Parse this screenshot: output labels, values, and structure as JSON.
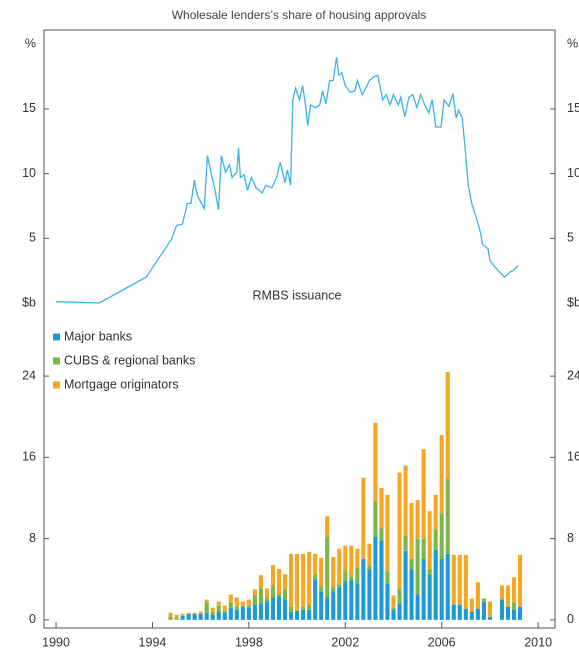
{
  "chart_data": [
    {
      "type": "line",
      "title": "Wholesale lenders’s share of housing approvals",
      "y_unit": "%",
      "color": "#3cb4e5",
      "xlim": [
        1989.5,
        2010.7
      ],
      "ylim": [
        0,
        21.1
      ],
      "yticks": [
        5,
        10,
        15
      ],
      "x": [
        1990,
        1991.8,
        1993.74,
        1994.28,
        1994.78,
        1995,
        1995.24,
        1995.45,
        1995.6,
        1995.74,
        1995.86,
        1996.15,
        1996.28,
        1996.45,
        1996.6,
        1996.74,
        1996.86,
        1997.03,
        1997.2,
        1997.3,
        1997.5,
        1997.57,
        1997.65,
        1997.8,
        1997.94,
        1998.1,
        1998.3,
        1998.55,
        1998.7,
        1998.95,
        1999.15,
        1999.3,
        1999.5,
        1999.6,
        1999.73,
        1999.82,
        1999.94,
        2000.1,
        2000.23,
        2000.35,
        2000.44,
        2000.56,
        2000.77,
        2000.94,
        2001.06,
        2001.2,
        2001.35,
        2001.5,
        2001.64,
        2001.73,
        2001.85,
        2002,
        2002.2,
        2002.4,
        2002.5,
        2002.7,
        2002.85,
        2003,
        2003.2,
        2003.35,
        2003.55,
        2003.7,
        2003.85,
        2004,
        2004.2,
        2004.3,
        2004.47,
        2004.64,
        2004.8,
        2004.97,
        2005.13,
        2005.3,
        2005.47,
        2005.6,
        2005.76,
        2005.97,
        2006.1,
        2006.3,
        2006.47,
        2006.6,
        2006.7,
        2006.85,
        2006.97,
        2007.1,
        2007.26,
        2007.43,
        2007.6,
        2007.7,
        2007.92,
        2008,
        2008.2,
        2008.4,
        2008.6,
        2008.84,
        2008.96,
        2009.17
      ],
      "values": [
        0.1,
        0,
        2,
        3.5,
        4.9,
        6,
        6.1,
        7.7,
        7.7,
        9.5,
        8.3,
        7.3,
        11.4,
        9.9,
        8.7,
        7.2,
        11.4,
        10.1,
        10.7,
        9.7,
        10.1,
        12,
        9.7,
        9.9,
        8.7,
        9.7,
        8.9,
        8.5,
        9.1,
        8.9,
        9.7,
        10.9,
        9.3,
        10.3,
        9.1,
        15.7,
        16.6,
        15.7,
        16.8,
        15.3,
        13.7,
        15.3,
        15.1,
        15.3,
        16.4,
        15.4,
        17.2,
        17.2,
        19,
        17.6,
        17.8,
        16.8,
        16.3,
        16.4,
        17.2,
        16.1,
        16.6,
        17.2,
        17.5,
        17.6,
        15.7,
        16.1,
        15.3,
        16.1,
        15.3,
        15.9,
        14.4,
        15.9,
        16.1,
        15.1,
        16.1,
        15.3,
        14.7,
        15.7,
        13.6,
        13.6,
        15.7,
        15.2,
        16.2,
        14.3,
        14.9,
        14.3,
        12,
        9.1,
        7.6,
        6.6,
        5.5,
        4.5,
        4.2,
        3.3,
        2.8,
        2.4,
        2,
        2.4,
        2.5,
        2.9
      ]
    },
    {
      "type": "bar",
      "stacked": true,
      "title": "RMBS issuance",
      "y_unit": "$b",
      "xlim": [
        1989.5,
        2010.7
      ],
      "xticks": [
        1990,
        1994,
        1998,
        2002,
        2006,
        2010
      ],
      "ylim": [
        -0.8,
        31.2
      ],
      "yticks": [
        0,
        8,
        16,
        24
      ],
      "x": [
        1994.75,
        1995,
        1995.25,
        1995.5,
        1995.75,
        1996,
        1996.25,
        1996.5,
        1996.75,
        1997,
        1997.25,
        1997.5,
        1997.75,
        1998,
        1998.25,
        1998.5,
        1998.75,
        1999,
        1999.25,
        1999.5,
        1999.75,
        2000,
        2000.25,
        2000.5,
        2000.75,
        2001,
        2001.25,
        2001.5,
        2001.75,
        2002,
        2002.25,
        2002.5,
        2002.75,
        2003,
        2003.25,
        2003.5,
        2003.75,
        2004,
        2004.25,
        2004.5,
        2004.75,
        2005,
        2005.25,
        2005.5,
        2005.75,
        2006,
        2006.25,
        2006.5,
        2006.75,
        2007,
        2007.25,
        2007.5,
        2007.75,
        2008,
        2008.25,
        2008.5,
        2008.75,
        2009,
        2009.25
      ],
      "series": [
        {
          "name": "Major banks",
          "color": "#1b9ad6",
          "values": [
            0,
            0,
            0.4,
            0.6,
            0.6,
            0.6,
            0.7,
            0.5,
            0.8,
            0.7,
            1.2,
            1,
            1.3,
            1.2,
            1.5,
            1.6,
            1.8,
            2.2,
            2.3,
            2,
            0.8,
            0.9,
            1,
            1,
            4,
            2.8,
            2.2,
            2.8,
            3.2,
            3.8,
            3.9,
            3.6,
            6,
            5,
            8.2,
            7.8,
            3.6,
            1,
            1.6,
            6.8,
            5,
            2.5,
            6,
            4.5,
            6.9,
            6,
            6.5,
            1.5,
            1.5,
            1.1,
            0.8,
            1.1,
            1.8,
            0.3,
            0,
            2,
            1.3,
            1,
            1.3
          ]
        },
        {
          "name": "CUBS & regional banks",
          "color": "#7ab648",
          "values": [
            0.3,
            0.2,
            0,
            0,
            0,
            0,
            1,
            0.3,
            0.6,
            0.2,
            0.5,
            0.3,
            0,
            0.2,
            0.9,
            1.5,
            0.4,
            1.2,
            0.2,
            1,
            0.5,
            0,
            0.3,
            0.5,
            0.5,
            0.5,
            6,
            0.4,
            0.3,
            1,
            0.4,
            1.5,
            0,
            0.3,
            3.5,
            1.2,
            1.2,
            0.2,
            1.5,
            1.5,
            1,
            5.5,
            2,
            0.5,
            2,
            4.5,
            7.4,
            0,
            0,
            0,
            0,
            0,
            0.3,
            0,
            0,
            0,
            0,
            0.7,
            0
          ]
        },
        {
          "name": "Mortgage originators",
          "color": "#f5a623",
          "values": [
            0.4,
            0.3,
            0.2,
            0.1,
            0.1,
            0.2,
            0.3,
            0.4,
            0.4,
            0.5,
            0.8,
            0.9,
            0.5,
            0.6,
            0.6,
            1.3,
            0.9,
            2,
            2.5,
            1.5,
            5.2,
            5.6,
            5.2,
            5.2,
            2,
            2.8,
            2,
            3,
            3.5,
            2.5,
            3,
            1.9,
            8,
            2.2,
            7.7,
            4,
            7.5,
            1.2,
            11.4,
            6.9,
            5.5,
            3.8,
            8.8,
            5.7,
            3.4,
            7.7,
            10.5,
            4.9,
            4.9,
            5.3,
            1.3,
            2.6,
            0,
            1.5,
            0,
            1.4,
            2.1,
            2.5,
            5.1
          ]
        }
      ]
    }
  ]
}
